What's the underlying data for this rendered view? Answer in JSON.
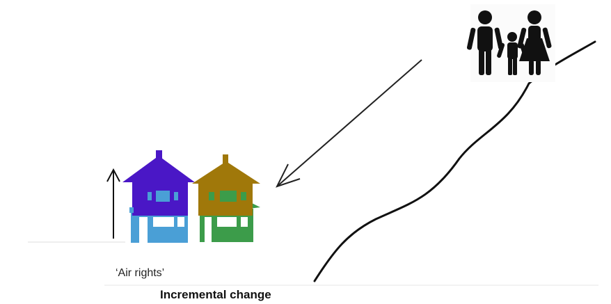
{
  "labels": {
    "air_rights": "‘Air rights’",
    "caption": "Incremental change"
  },
  "icons": {
    "family": "family-icon",
    "houses": "houses-icon",
    "up_arrow": "arrow-up-icon",
    "diagonal_arrow": "arrow-down-left-icon",
    "slope": "hillside-curve"
  },
  "colors": {
    "house_left_roof": "#4a17c6",
    "house_left_base": "#4a9fd6",
    "house_right_roof": "#a0780a",
    "house_right_base": "#3c9c4a",
    "family": "#111111",
    "lines": "#111111"
  }
}
